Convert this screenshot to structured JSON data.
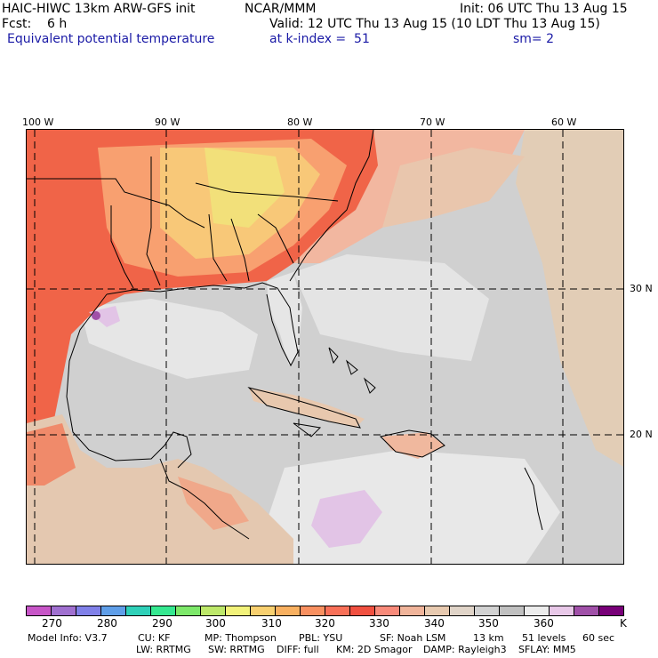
{
  "header": {
    "model": "HAIC-HIWC 13km ARW-GFS init",
    "org": "NCAR/MMM",
    "init": "Init: 06 UTC Thu 13 Aug 15",
    "fcst": "Fcst:    6 h",
    "valid": "Valid: 12 UTC Thu 13 Aug 15 (10 LDT Thu 13 Aug 15)",
    "field": "Equivalent potential temperature",
    "level": "at k-index =  51",
    "smooth": "sm= 2"
  },
  "map": {
    "lon_labels": [
      "100 W",
      "90 W",
      "80 W",
      "70 W",
      "60 W"
    ],
    "lat_labels": [
      "30 N",
      "20 N"
    ]
  },
  "colorbar": {
    "colors": [
      "#c755c7",
      "#a070d0",
      "#8080e8",
      "#5f9ee8",
      "#2fd0b8",
      "#35e890",
      "#7de86a",
      "#bde86a",
      "#f2f27a",
      "#f8d070",
      "#f8b060",
      "#f89060",
      "#f87058",
      "#f05040",
      "#f88a7a",
      "#f0b49a",
      "#e8cab0",
      "#e0d4c8",
      "#d2d2d2",
      "#c0c0c0",
      "#ececec",
      "#e8c8e8",
      "#a050a8",
      "#780078"
    ],
    "labels": [
      "270",
      "280",
      "290",
      "300",
      "310",
      "320",
      "330",
      "340",
      "350",
      "360"
    ],
    "unit": "K"
  },
  "footer": {
    "line1": [
      "Model Info: V3.7",
      "CU: KF",
      "MP: Thompson",
      "PBL: YSU",
      "SF: Noah LSM",
      "13 km",
      "51 levels",
      "60 sec"
    ],
    "line2": [
      "LW: RRTMG",
      "SW: RRTMG",
      "DIFF: full",
      "KM: 2D Smagor",
      "DAMP: Rayleigh3",
      "SFLAY: MM5"
    ]
  }
}
